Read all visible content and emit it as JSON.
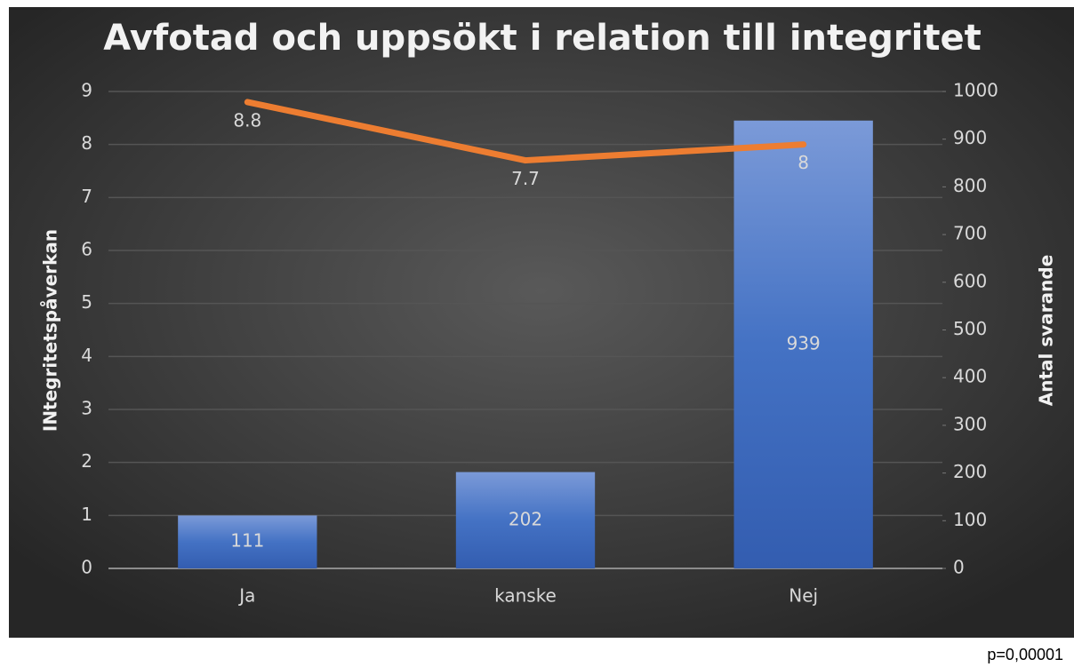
{
  "chart_data": {
    "type": "bar+line",
    "title": "Avfotad och uppsökt i relation till integritet",
    "ylabel": "INtegritetspåverkan",
    "y2label": "Antal svarande",
    "annotation": "p=0,00001",
    "categories": [
      "Ja",
      "kanske",
      "Nej"
    ],
    "series": [
      {
        "name": "Antal svarande",
        "type": "bar",
        "axis": "y2",
        "color": "#4472c4",
        "values": [
          111,
          202,
          939
        ]
      },
      {
        "name": "Integritetspåverkan",
        "type": "line",
        "axis": "y",
        "color": "#ed7d31",
        "values": [
          8.8,
          7.7,
          8
        ]
      }
    ],
    "ylim": [
      0,
      9
    ],
    "yticks": [
      0,
      1,
      2,
      3,
      4,
      5,
      6,
      7,
      8,
      9
    ],
    "y2lim": [
      0,
      1000
    ],
    "y2ticks": [
      0,
      100,
      200,
      300,
      400,
      500,
      600,
      700,
      800,
      900,
      1000
    ],
    "grid": true
  }
}
